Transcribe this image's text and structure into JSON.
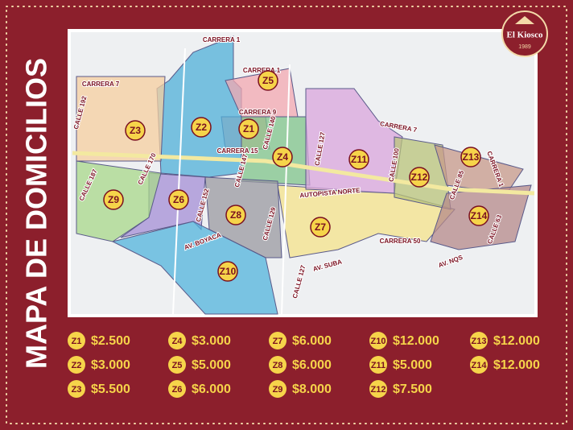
{
  "title": "MAPA DE DOMICILIOS",
  "logo": {
    "name": "El Kiosco",
    "year": "1989"
  },
  "zones": [
    {
      "label": "Z1"
    },
    {
      "label": "Z2"
    },
    {
      "label": "Z3"
    },
    {
      "label": "Z4"
    },
    {
      "label": "Z5"
    },
    {
      "label": "Z6"
    },
    {
      "label": "Z7"
    },
    {
      "label": "Z8"
    },
    {
      "label": "Z9"
    },
    {
      "label": "Z10"
    },
    {
      "label": "Z11"
    },
    {
      "label": "Z12"
    },
    {
      "label": "Z13"
    },
    {
      "label": "Z14"
    }
  ],
  "streets": [
    "CARRERA 1",
    "CARRERA 1",
    "CARRERA 7",
    "CALLE 192",
    "CARRERA 9",
    "CALLE 140",
    "CALLE 170",
    "CARRERA 15",
    "CALLE 147",
    "CALLE 127",
    "CALLE 187",
    "CALLE 152",
    "AUTOPISTA NORTE",
    "CALLE 129",
    "AV. BOYACA",
    "AV. SUBA",
    "CARRERA 50",
    "AV. NQS",
    "CALLE 127",
    "CALLE 100",
    "CARRERA 7",
    "CALLE 85",
    "CALLE 63",
    "CARRERA 1"
  ],
  "prices": [
    {
      "zone": "Z1",
      "price": "$2.500"
    },
    {
      "zone": "Z2",
      "price": "$3.000"
    },
    {
      "zone": "Z3",
      "price": "$5.500"
    },
    {
      "zone": "Z4",
      "price": "$3.000"
    },
    {
      "zone": "Z5",
      "price": "$5.000"
    },
    {
      "zone": "Z6",
      "price": "$6.000"
    },
    {
      "zone": "Z7",
      "price": "$6.000"
    },
    {
      "zone": "Z8",
      "price": "$6.000"
    },
    {
      "zone": "Z9",
      "price": "$8.000"
    },
    {
      "zone": "Z10",
      "price": "$12.000"
    },
    {
      "zone": "Z11",
      "price": "$5.000"
    },
    {
      "zone": "Z12",
      "price": "$7.500"
    },
    {
      "zone": "Z13",
      "price": "$12.000"
    },
    {
      "zone": "Z14",
      "price": "$12.000"
    }
  ]
}
